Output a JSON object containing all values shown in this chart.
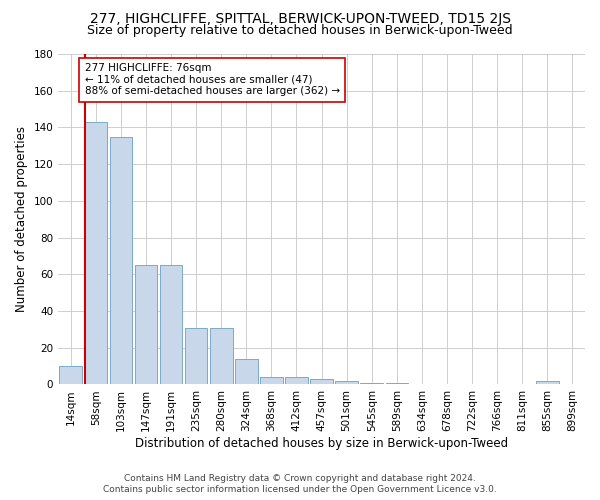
{
  "title": "277, HIGHCLIFFE, SPITTAL, BERWICK-UPON-TWEED, TD15 2JS",
  "subtitle": "Size of property relative to detached houses in Berwick-upon-Tweed",
  "xlabel": "Distribution of detached houses by size in Berwick-upon-Tweed",
  "ylabel": "Number of detached properties",
  "footer_line1": "Contains HM Land Registry data © Crown copyright and database right 2024.",
  "footer_line2": "Contains public sector information licensed under the Open Government Licence v3.0.",
  "categories": [
    "14sqm",
    "58sqm",
    "103sqm",
    "147sqm",
    "191sqm",
    "235sqm",
    "280sqm",
    "324sqm",
    "368sqm",
    "412sqm",
    "457sqm",
    "501sqm",
    "545sqm",
    "589sqm",
    "634sqm",
    "678sqm",
    "722sqm",
    "766sqm",
    "811sqm",
    "855sqm",
    "899sqm"
  ],
  "values": [
    10,
    143,
    135,
    65,
    65,
    31,
    31,
    14,
    4,
    4,
    3,
    2,
    1,
    1,
    0,
    0,
    0,
    0,
    0,
    2,
    0
  ],
  "bar_color": "#c8d8ea",
  "bar_edge_color": "#7aaac8",
  "vline_color": "#cc0000",
  "annotation_text": "277 HIGHCLIFFE: 76sqm\n← 11% of detached houses are smaller (47)\n88% of semi-detached houses are larger (362) →",
  "annotation_box_color": "#ffffff",
  "annotation_box_edge": "#cc0000",
  "ylim": [
    0,
    180
  ],
  "yticks": [
    0,
    20,
    40,
    60,
    80,
    100,
    120,
    140,
    160,
    180
  ],
  "bg_color": "#ffffff",
  "plot_bg_color": "#ffffff",
  "grid_color": "#c8c8c8",
  "title_fontsize": 10,
  "subtitle_fontsize": 9,
  "xlabel_fontsize": 8.5,
  "ylabel_fontsize": 8.5,
  "tick_fontsize": 7.5,
  "footer_fontsize": 6.5
}
